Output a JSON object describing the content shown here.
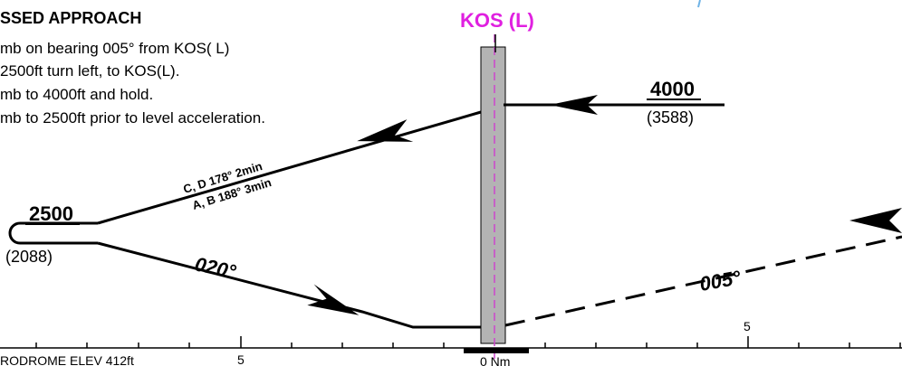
{
  "title": "SSED APPROACH",
  "notes": [
    "mb on bearing 005° from KOS( L)",
    "2500ft turn left, to KOS(L).",
    "mb to 4000ft and hold.",
    "mb to 2500ft prior to level acceleration."
  ],
  "fix": {
    "label": "KOS  (L)",
    "color": "#e020e0"
  },
  "altitudes": {
    "upper": {
      "value": "4000",
      "sub": "(3588)"
    },
    "left": {
      "value": "2500",
      "sub": "(2088)"
    }
  },
  "tracks": {
    "cd": "C, D 178°  2min",
    "ab": "A, B 188°  3min",
    "outbound": "020°",
    "inbound": "005°"
  },
  "scale": {
    "elev": "RODROME ELEV 412ft",
    "left_five": "5",
    "right_five": "5",
    "zero": "0 Nm"
  },
  "colors": {
    "runway": "#b3b3b3",
    "centerline": "#cc44cc",
    "ink": "#000000",
    "accent": "#6fb3e6"
  }
}
